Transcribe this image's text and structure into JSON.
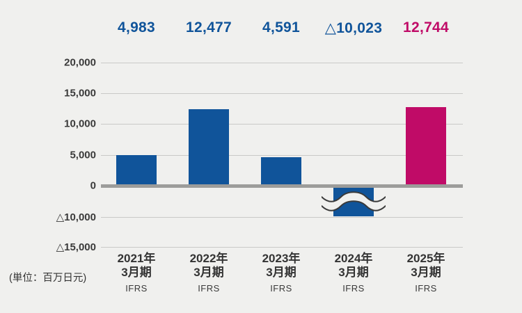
{
  "chart_data": {
    "type": "bar",
    "title": "",
    "unit_label": "(単位：百万日元)",
    "categories": [
      {
        "year": "2021年",
        "period": "3月期",
        "standard": "IFRS"
      },
      {
        "year": "2022年",
        "period": "3月期",
        "standard": "IFRS"
      },
      {
        "year": "2023年",
        "period": "3月期",
        "standard": "IFRS"
      },
      {
        "year": "2024年",
        "period": "3月期",
        "standard": "IFRS"
      },
      {
        "year": "2025年",
        "period": "3月期",
        "standard": "IFRS"
      }
    ],
    "values": [
      4983,
      12477,
      4591,
      -10023,
      12744
    ],
    "value_labels": [
      "4,983",
      "12,477",
      "4,591",
      "△10,023",
      "12,744"
    ],
    "bar_color_keys": [
      "blue",
      "blue",
      "blue",
      "blue",
      "pink"
    ],
    "y_ticks": [
      {
        "label": "20,000",
        "value": 20000
      },
      {
        "label": "15,000",
        "value": 15000
      },
      {
        "label": "10,000",
        "value": 10000
      },
      {
        "label": "5,000",
        "value": 5000
      },
      {
        "label": "0",
        "value": 0
      },
      {
        "label": "△10,000",
        "value": -10000
      },
      {
        "label": "△15,000",
        "value": -15000
      }
    ],
    "axis_break": {
      "series_index": 3,
      "between_values": [
        0,
        -10000
      ]
    },
    "grid": true,
    "legend": "none",
    "ylim_top": 20000,
    "colors": {
      "bar_blue": "#10549a",
      "bar_pink": "#c00b67",
      "label_blue": "#10549a",
      "label_pink": "#c00b67",
      "grid_line": "#c9c9c7",
      "zero_line": "#9c9c9a",
      "text_dark": "#333333",
      "background": "#f0f0ee",
      "wave_stroke": "#3a3a3a"
    }
  }
}
